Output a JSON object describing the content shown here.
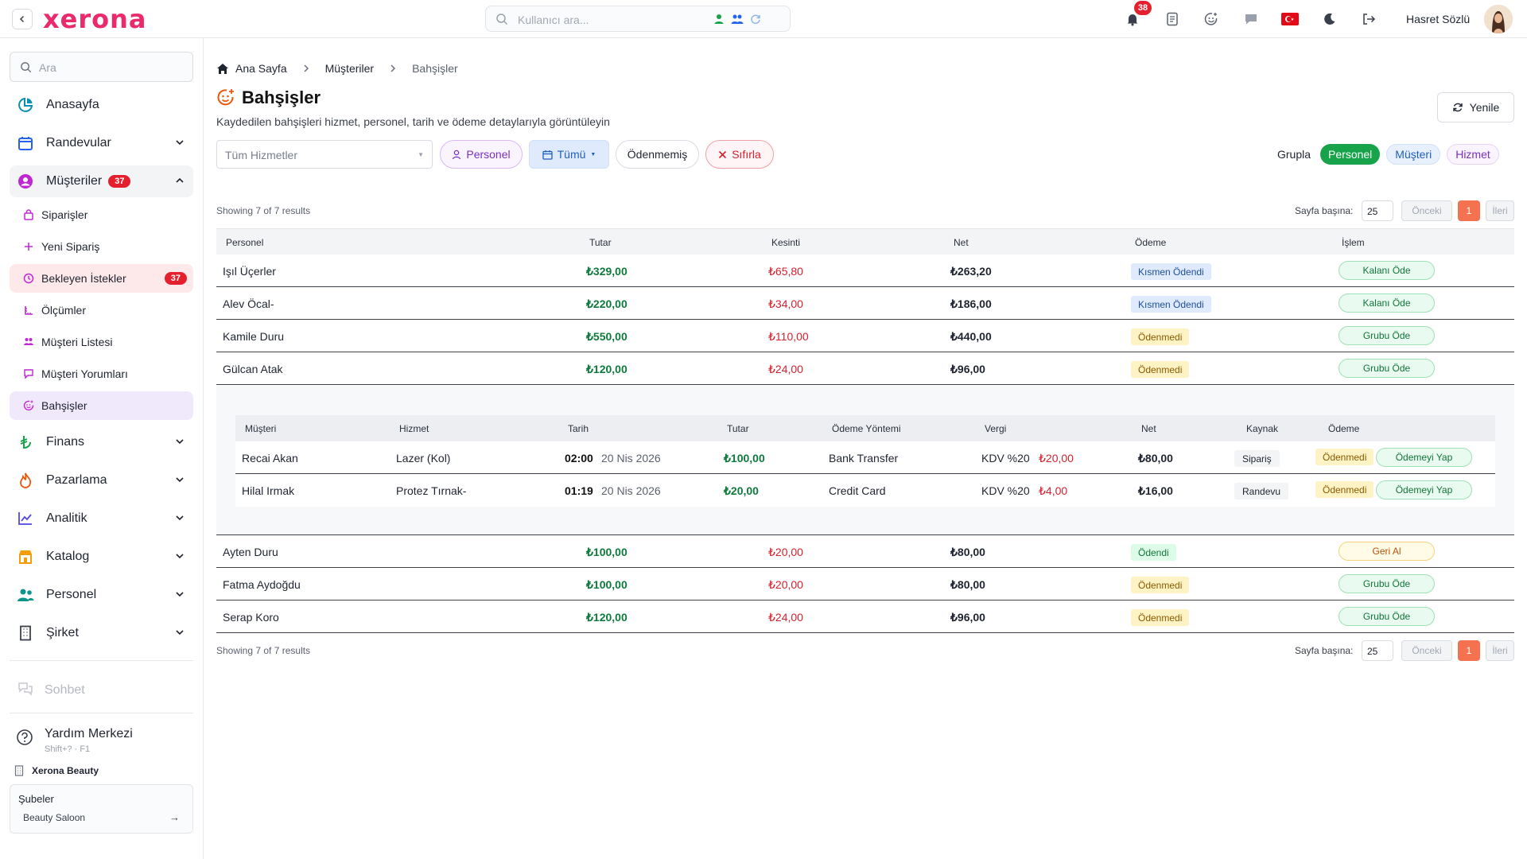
{
  "brand": {
    "logo": "xerona",
    "accent": "#ea2a6b"
  },
  "topbar": {
    "search_placeholder": "Kullanıcı ara...",
    "notification_count": "38",
    "user_name": "Hasret Sözlü"
  },
  "sidebar": {
    "search_placeholder": "Ara",
    "items": [
      {
        "label": "Anasayfa",
        "icon": "pie-chart-icon"
      },
      {
        "label": "Randevular",
        "icon": "calendar-icon"
      },
      {
        "label": "Müşteriler",
        "icon": "user-circle-icon",
        "badge": "37"
      },
      {
        "label": "Finans",
        "icon": "lira-icon"
      },
      {
        "label": "Pazarlama",
        "icon": "flame-icon"
      },
      {
        "label": "Analitik",
        "icon": "chart-line-icon"
      },
      {
        "label": "Katalog",
        "icon": "store-icon"
      },
      {
        "label": "Personel",
        "icon": "users-icon"
      },
      {
        "label": "Şirket",
        "icon": "building-icon"
      }
    ],
    "sub_items": [
      {
        "label": "Siparişler",
        "icon": "bag-icon"
      },
      {
        "label": "Yeni Sipariş",
        "icon": "plus-icon"
      },
      {
        "label": "Bekleyen İstekler",
        "icon": "clock-icon",
        "badge": "37"
      },
      {
        "label": "Ölçümler",
        "icon": "ruler-icon"
      },
      {
        "label": "Müşteri Listesi",
        "icon": "group-icon"
      },
      {
        "label": "Müşteri Yorumları",
        "icon": "comment-icon"
      },
      {
        "label": "Bahşişler",
        "icon": "smile-plus-icon"
      }
    ],
    "chat": "Sohbet",
    "help_title": "Yardım Merkezi",
    "help_shortcut": "Shift+? · F1",
    "company": "Xerona Beauty",
    "branches_label": "Şubeler",
    "branch_value": "Beauty Saloon",
    "branch_arrow": "→"
  },
  "breadcrumb": [
    "Ana Sayfa",
    "Müşteriler",
    "Bahşişler"
  ],
  "page": {
    "title": "Bahşişler",
    "subtitle": "Kaydedilen bahşişleri hizmet, personel, tarih ve ödeme detaylarıyla görüntüleyin",
    "refresh": "Yenile"
  },
  "filters": {
    "service_placeholder": "Tüm Hizmetler",
    "personel": "Personel",
    "date": "Tümü",
    "unpaid": "Ödenmemiş",
    "reset": "Sıfırla",
    "group_label": "Grupla",
    "group_options": [
      "Personel",
      "Müşteri",
      "Hizmet"
    ]
  },
  "pager": {
    "showing": "Showing 7 of 7 results",
    "per_page_label": "Sayfa başına:",
    "per_page": "25",
    "prev": "Önceki",
    "page": "1",
    "next": "İleri"
  },
  "table": {
    "headers": [
      "Personel",
      "Tutar",
      "Kesinti",
      "Net",
      "Ödeme",
      "İşlem"
    ],
    "rows": [
      {
        "name": "Işıl Üçerler",
        "amount": "₺329,00",
        "cut": "₺65,80",
        "net": "₺263,20",
        "status": "Kısmen Ödendi",
        "status_type": "kismen",
        "action": "Kalanı Öde",
        "action_type": "green"
      },
      {
        "name": "Alev Öcal-",
        "amount": "₺220,00",
        "cut": "₺34,00",
        "net": "₺186,00",
        "status": "Kısmen Ödendi",
        "status_type": "kismen",
        "action": "Kalanı Öde",
        "action_type": "green"
      },
      {
        "name": "Kamile Duru",
        "amount": "₺550,00",
        "cut": "₺110,00",
        "net": "₺440,00",
        "status": "Ödenmedi",
        "status_type": "odenmedi",
        "action": "Grubu Öde",
        "action_type": "green"
      },
      {
        "name": "Gülcan Atak",
        "amount": "₺120,00",
        "cut": "₺24,00",
        "net": "₺96,00",
        "status": "Ödenmedi",
        "status_type": "odenmedi",
        "action": "Grubu Öde",
        "action_type": "green"
      },
      {
        "name": "Ayten Duru",
        "amount": "₺100,00",
        "cut": "₺20,00",
        "net": "₺80,00",
        "status": "Ödendi",
        "status_type": "odendi",
        "action": "Geri Al",
        "action_type": "yellow"
      },
      {
        "name": "Fatma Aydoğdu",
        "amount": "₺100,00",
        "cut": "₺20,00",
        "net": "₺80,00",
        "status": "Ödenmedi",
        "status_type": "odenmedi",
        "action": "Grubu Öde",
        "action_type": "green"
      },
      {
        "name": "Serap Koro",
        "amount": "₺120,00",
        "cut": "₺24,00",
        "net": "₺96,00",
        "status": "Ödenmedi",
        "status_type": "odenmedi",
        "action": "Grubu Öde",
        "action_type": "green"
      }
    ]
  },
  "subtable": {
    "headers": [
      "Müşteri",
      "Hizmet",
      "Tarih",
      "Tutar",
      "Ödeme Yöntemi",
      "Vergi",
      "Net",
      "Kaynak",
      "Ödeme"
    ],
    "rows": [
      {
        "customer": "Recai Akan",
        "service": "Lazer (Kol)",
        "time": "02:00",
        "date": "20 Nis 2026",
        "amount": "₺100,00",
        "method": "Bank Transfer",
        "tax": "KDV %20",
        "tax_amount": "₺20,00",
        "net": "₺80,00",
        "source": "Sipariş",
        "status": "Ödenmedi",
        "action": "Ödemeyi Yap"
      },
      {
        "customer": "Hilal Irmak",
        "service": "Protez Tırnak-",
        "time": "01:19",
        "date": "20 Nis 2026",
        "amount": "₺20,00",
        "method": "Credit Card",
        "tax": "KDV %20",
        "tax_amount": "₺4,00",
        "net": "₺16,00",
        "source": "Randevu",
        "status": "Ödenmedi",
        "action": "Ödemeyi Yap"
      }
    ]
  }
}
